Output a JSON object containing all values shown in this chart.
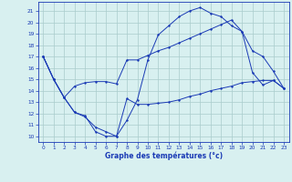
{
  "background_color": "#d8f0f0",
  "grid_color": "#aacccc",
  "line_color": "#1a3ab5",
  "xlabel": "Graphe des températures (°c)",
  "ylim": [
    9.5,
    21.8
  ],
  "xlim": [
    -0.5,
    23.5
  ],
  "yticks": [
    10,
    11,
    12,
    13,
    14,
    15,
    16,
    17,
    18,
    19,
    20,
    21
  ],
  "xticks": [
    0,
    1,
    2,
    3,
    4,
    5,
    6,
    7,
    8,
    9,
    10,
    11,
    12,
    13,
    14,
    15,
    16,
    17,
    18,
    19,
    20,
    21,
    22,
    23
  ],
  "line1_x": [
    0,
    1,
    2,
    3,
    4,
    5,
    6,
    7,
    8,
    9,
    10,
    11,
    12,
    13,
    14,
    15,
    16,
    17,
    18,
    19,
    20,
    21,
    22,
    23
  ],
  "line1_y": [
    17.0,
    15.0,
    13.4,
    12.1,
    11.8,
    10.4,
    10.0,
    10.0,
    13.3,
    12.8,
    12.8,
    12.9,
    13.0,
    13.2,
    13.5,
    13.7,
    14.0,
    14.2,
    14.4,
    14.7,
    14.8,
    14.9,
    14.9,
    14.2
  ],
  "line2_x": [
    0,
    1,
    2,
    3,
    4,
    5,
    6,
    7,
    8,
    9,
    10,
    11,
    12,
    13,
    14,
    15,
    16,
    17,
    18,
    19,
    20,
    21,
    22,
    23
  ],
  "line2_y": [
    17.0,
    15.0,
    13.4,
    14.4,
    14.7,
    14.8,
    14.8,
    14.6,
    16.7,
    16.7,
    17.1,
    17.5,
    17.8,
    18.2,
    18.6,
    19.0,
    19.4,
    19.8,
    20.2,
    19.2,
    15.6,
    14.5,
    14.9,
    14.2
  ],
  "line3_x": [
    0,
    1,
    2,
    3,
    4,
    5,
    6,
    7,
    8,
    9,
    10,
    11,
    12,
    13,
    14,
    15,
    16,
    17,
    18,
    19,
    20,
    21,
    22,
    23
  ],
  "line3_y": [
    17.0,
    15.0,
    13.4,
    12.1,
    11.7,
    10.8,
    10.4,
    10.0,
    11.4,
    13.2,
    16.7,
    18.9,
    19.7,
    20.5,
    21.0,
    21.3,
    20.8,
    20.5,
    19.7,
    19.2,
    17.5,
    17.0,
    15.7,
    14.2
  ]
}
